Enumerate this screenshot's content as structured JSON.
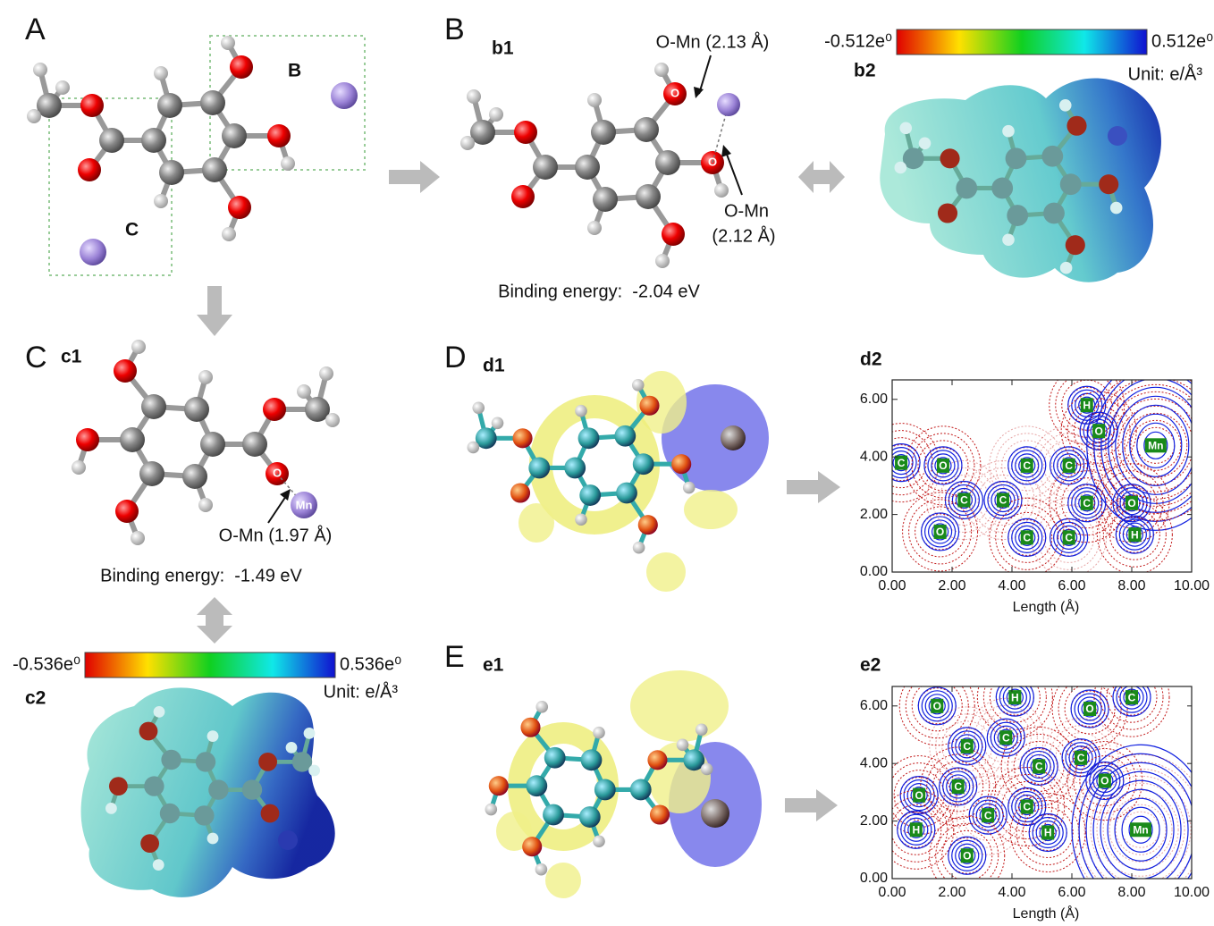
{
  "panels": {
    "A": {
      "letter": "A",
      "box_labels": [
        "B",
        "C"
      ]
    },
    "B": {
      "letter": "B",
      "b1": {
        "label": "b1",
        "atom_labels": [
          "O",
          "O"
        ],
        "annotations": [
          "O-Mn (2.13 Å)",
          "O-Mn",
          "(2.12 Å)"
        ],
        "binding_energy": "Binding energy:  -2.04 eV"
      },
      "b2": {
        "label": "b2",
        "colorbar_min": "-0.512e⁰",
        "colorbar_max": "0.512e⁰",
        "unit": "Unit: e/Å³"
      }
    },
    "C": {
      "letter": "C",
      "c1": {
        "label": "c1",
        "atom_labels": [
          "O",
          "Mn"
        ],
        "annotation": "O-Mn (1.97 Å)",
        "binding_energy": "Binding energy:  -1.49 eV"
      },
      "c2": {
        "label": "c2",
        "colorbar_min": "-0.536e⁰",
        "colorbar_max": "0.536e⁰",
        "unit": "Unit: e/Å³"
      }
    },
    "D": {
      "letter": "D",
      "d1": {
        "label": "d1"
      },
      "d2": {
        "label": "d2",
        "xlabel": "Length (Å)",
        "xticks": [
          "0.00",
          "2.00",
          "4.00",
          "6.00",
          "8.00",
          "10.00"
        ],
        "yticks": [
          "0.00",
          "2.00",
          "4.00",
          "6.00"
        ],
        "atom_labels": [
          "C",
          "O",
          "C",
          "O",
          "C",
          "C",
          "C",
          "C",
          "C",
          "C",
          "H",
          "O",
          "Mn",
          "O",
          "H"
        ]
      }
    },
    "E": {
      "letter": "E",
      "e1": {
        "label": "e1"
      },
      "e2": {
        "label": "e2",
        "xlabel": "Length (Å)",
        "xticks": [
          "0.00",
          "2.00",
          "4.00",
          "6.00",
          "8.00",
          "10.00"
        ],
        "yticks": [
          "0.00",
          "2.00",
          "4.00",
          "6.00"
        ],
        "atom_labels": [
          "O",
          "H",
          "O",
          "C",
          "C",
          "C",
          "C",
          "C",
          "O",
          "C",
          "O",
          "C",
          "C",
          "H",
          "H",
          "O",
          "Mn"
        ]
      }
    }
  }
}
